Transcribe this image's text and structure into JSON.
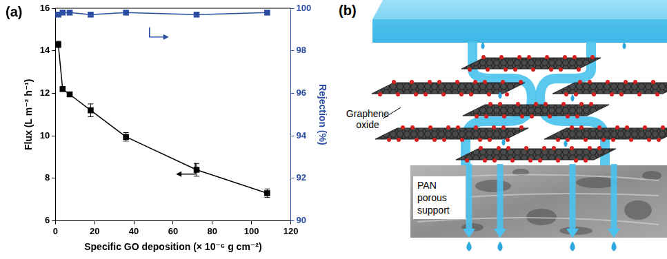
{
  "chart_data": {
    "type": "line",
    "title": "(a)",
    "x_label": "Specific GO deposition (× 10⁻⁶ g cm⁻²)",
    "y_label": "Flux (L m⁻² h⁻¹)",
    "y2_label": "Rejection (%)",
    "x": [
      1.5,
      3.7,
      7.3,
      18,
      36,
      72,
      108
    ],
    "series": [
      {
        "color": "#000000",
        "values": [
          14.3,
          12.2,
          11.95,
          11.2,
          9.95,
          8.4,
          7.3
        ],
        "errors": [
          0.15,
          0.1,
          0.1,
          0.3,
          0.2,
          0.3,
          0.2
        ],
        "marker": "square",
        "line_style": "solid"
      },
      {
        "color": "#2b4ea2",
        "axis": "y2",
        "values": [
          99.7,
          99.8,
          99.8,
          99.7,
          99.8,
          99.7,
          99.8
        ],
        "marker": "square",
        "line_style": "solid"
      }
    ],
    "xlim": [
      0,
      120
    ],
    "xticks": [
      0,
      20,
      40,
      60,
      80,
      100,
      120
    ],
    "ylim": [
      6,
      16
    ],
    "yticks": [
      6,
      8,
      10,
      12,
      14,
      16
    ],
    "y2lim": [
      90,
      100
    ],
    "y2ticks": [
      90,
      92,
      94,
      96,
      98,
      100
    ],
    "grid": false
  },
  "diagram": {
    "title": "(b)",
    "graphene_oxide_label": [
      "Graphene",
      "oxide"
    ],
    "support_label": [
      "PAN",
      "porous",
      "support"
    ]
  }
}
